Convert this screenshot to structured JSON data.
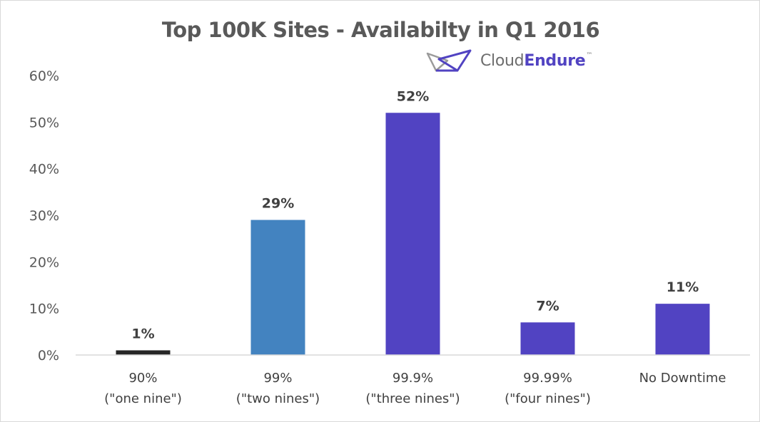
{
  "chart_data": {
    "type": "bar",
    "title": "Top 100K Sites - Availabilty in Q1 2016",
    "categories": [
      [
        "90%",
        "(\"one nine\")"
      ],
      [
        "99%",
        "(\"two nines\")"
      ],
      [
        "99.9%",
        "(\"three nines\")"
      ],
      [
        "99.99%",
        "(\"four nines\")"
      ],
      [
        "No Downtime"
      ]
    ],
    "values": [
      1,
      29,
      52,
      7,
      11
    ],
    "value_labels": [
      "1%",
      "29%",
      "52%",
      "7%",
      "11%"
    ],
    "bar_colors": [
      "#262626",
      "#4383c0",
      "#5143c2",
      "#5143c2",
      "#5143c2"
    ],
    "ylim": [
      0,
      60
    ],
    "yticks": [
      0,
      10,
      20,
      30,
      40,
      50,
      60
    ],
    "ytick_labels": [
      "0%",
      "10%",
      "20%",
      "30%",
      "40%",
      "50%",
      "60%"
    ],
    "xlabel": "",
    "ylabel": "",
    "grid": false,
    "legend": "none"
  },
  "logo": {
    "text_part1": "Cloud",
    "text_part2": "Endure",
    "trademark": "™",
    "colors": {
      "primary": "#5143c2",
      "secondary": "#6d6d6d"
    }
  }
}
